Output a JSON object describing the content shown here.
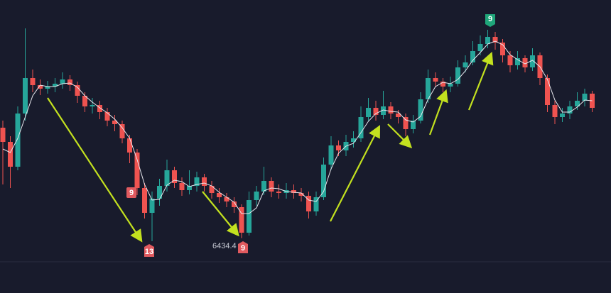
{
  "chart_data": {
    "type": "candlestick",
    "ylim": [
      6400,
      6770
    ],
    "up_color": "#26a69a",
    "down_color": "#ef5350",
    "ma_color": "#e8e8ee",
    "open": [
      6590,
      6570,
      6535,
      6610,
      6660,
      6650,
      6645,
      6648,
      6652,
      6658,
      6650,
      6635,
      6620,
      6622,
      6612,
      6600,
      6595,
      6575,
      6555,
      6505,
      6470,
      6490,
      6508,
      6530,
      6512,
      6502,
      6508,
      6520,
      6508,
      6498,
      6492,
      6486,
      6478,
      6442,
      6488,
      6500,
      6515,
      6500,
      6498,
      6502,
      6498,
      6494,
      6472,
      6492,
      6538,
      6565,
      6558,
      6570,
      6575,
      6605,
      6618,
      6608,
      6620,
      6610,
      6605,
      6588,
      6600,
      6630,
      6660,
      6655,
      6648,
      6652,
      6675,
      6682,
      6698,
      6708,
      6718,
      6710,
      6692,
      6678,
      6688,
      6675,
      6692,
      6660,
      6622,
      6605,
      6610,
      6620,
      6628,
      6638
    ],
    "high": [
      6600,
      6578,
      6620,
      6730,
      6672,
      6658,
      6656,
      6660,
      6668,
      6664,
      6655,
      6640,
      6632,
      6628,
      6618,
      6608,
      6600,
      6580,
      6560,
      6512,
      6500,
      6518,
      6545,
      6535,
      6520,
      6530,
      6528,
      6525,
      6515,
      6505,
      6498,
      6492,
      6482,
      6500,
      6508,
      6535,
      6520,
      6510,
      6512,
      6510,
      6505,
      6500,
      6500,
      6548,
      6578,
      6572,
      6580,
      6585,
      6620,
      6632,
      6628,
      6642,
      6626,
      6615,
      6610,
      6608,
      6640,
      6672,
      6668,
      6660,
      6662,
      6685,
      6692,
      6712,
      6720,
      6728,
      6725,
      6715,
      6698,
      6698,
      6692,
      6702,
      6696,
      6665,
      6628,
      6618,
      6628,
      6640,
      6645,
      6642
    ],
    "low": [
      6510,
      6505,
      6530,
      6600,
      6640,
      6636,
      6638,
      6640,
      6645,
      6642,
      6625,
      6612,
      6610,
      6602,
      6592,
      6585,
      6568,
      6540,
      6495,
      6462,
      6430,
      6480,
      6500,
      6505,
      6494,
      6496,
      6500,
      6500,
      6490,
      6484,
      6478,
      6470,
      6434.4,
      6438,
      6480,
      6495,
      6492,
      6490,
      6490,
      6490,
      6486,
      6462,
      6466,
      6488,
      6530,
      6550,
      6550,
      6562,
      6570,
      6600,
      6600,
      6602,
      6602,
      6596,
      6578,
      6582,
      6596,
      6625,
      6648,
      6640,
      6640,
      6648,
      6668,
      6678,
      6692,
      6702,
      6700,
      6682,
      6668,
      6672,
      6668,
      6670,
      6650,
      6612,
      6595,
      6598,
      6602,
      6615,
      6620,
      6612
    ],
    "close": [
      6570,
      6535,
      6610,
      6660,
      6650,
      6645,
      6648,
      6652,
      6658,
      6650,
      6635,
      6620,
      6622,
      6612,
      6600,
      6595,
      6575,
      6555,
      6505,
      6470,
      6490,
      6508,
      6530,
      6512,
      6502,
      6508,
      6520,
      6508,
      6498,
      6492,
      6486,
      6478,
      6442,
      6488,
      6500,
      6515,
      6500,
      6498,
      6502,
      6498,
      6494,
      6472,
      6492,
      6538,
      6565,
      6558,
      6570,
      6575,
      6605,
      6618,
      6608,
      6620,
      6610,
      6605,
      6588,
      6600,
      6630,
      6660,
      6655,
      6648,
      6652,
      6675,
      6682,
      6698,
      6708,
      6718,
      6710,
      6692,
      6678,
      6688,
      6675,
      6692,
      6660,
      6622,
      6605,
      6610,
      6620,
      6628,
      6638,
      6618
    ],
    "ma": [
      6560,
      6555,
      6575,
      6605,
      6635,
      6650,
      6648,
      6648,
      6652,
      6653,
      6647,
      6635,
      6626,
      6618,
      6611,
      6602,
      6590,
      6575,
      6545,
      6510,
      6488,
      6489,
      6509,
      6516,
      6514,
      6507,
      6510,
      6512,
      6508,
      6499,
      6492,
      6485,
      6469,
      6469,
      6477,
      6501,
      6505,
      6504,
      6500,
      6499,
      6498,
      6488,
      6486,
      6500,
      6532,
      6554,
      6564,
      6568,
      6583,
      6599,
      6610,
      6615,
      6613,
      6612,
      6601,
      6598,
      6606,
      6630,
      6648,
      6654,
      6652,
      6658,
      6670,
      6685,
      6696,
      6708,
      6712,
      6707,
      6693,
      6686,
      6680,
      6685,
      6676,
      6658,
      6629,
      6612,
      6612,
      6619,
      6629,
      6628
    ],
    "markers": [
      {
        "label": "9"
      },
      {
        "label": "13"
      },
      {
        "label": "9"
      },
      {
        "label": "9"
      }
    ],
    "price_label": "6434.4"
  }
}
